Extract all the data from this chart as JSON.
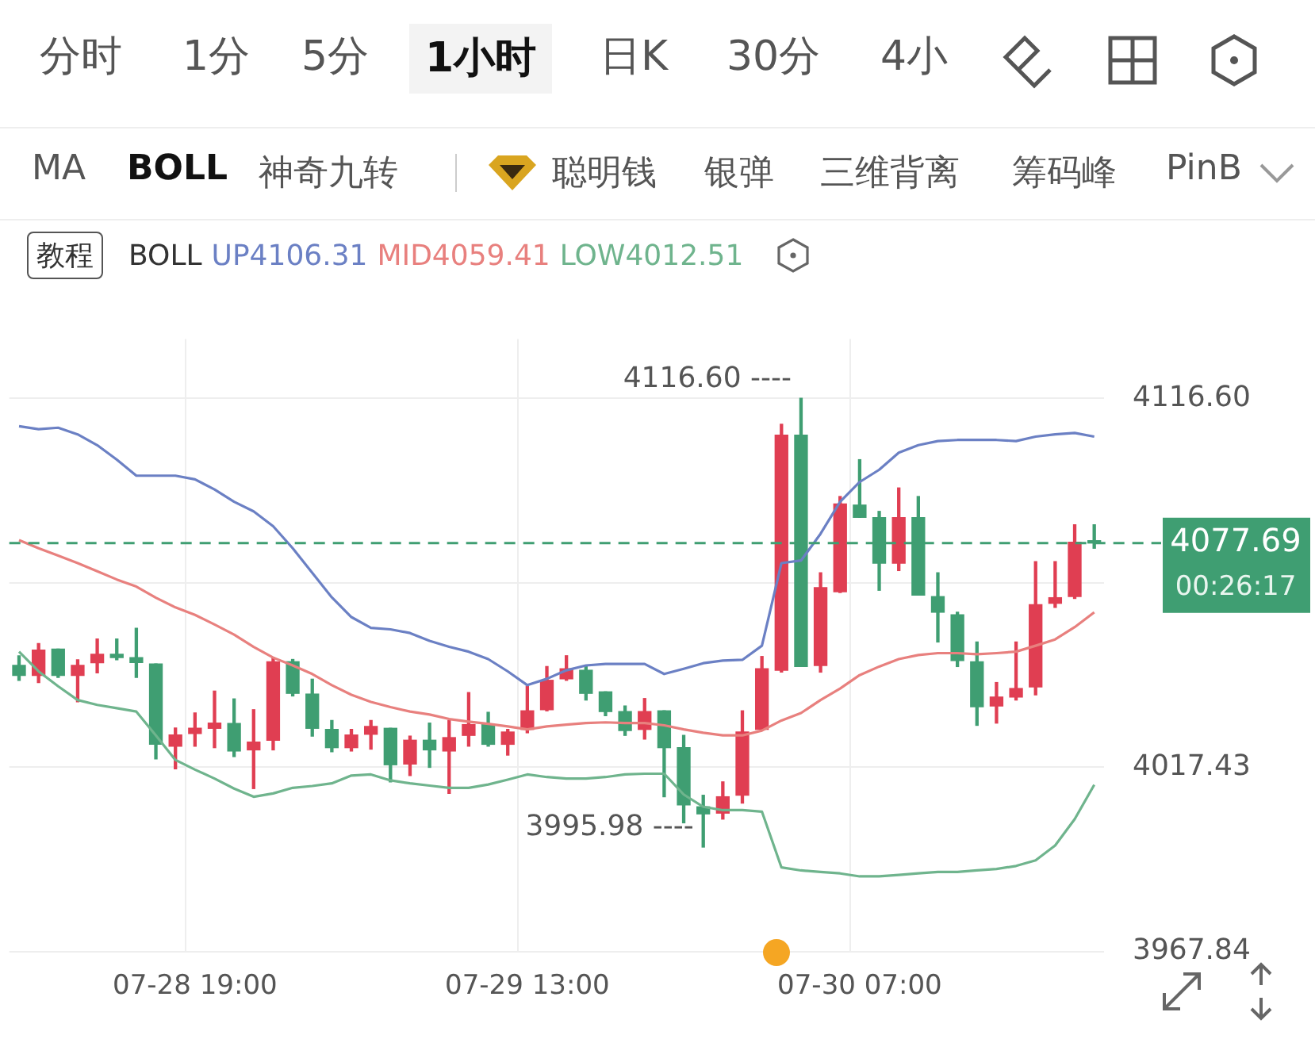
{
  "chart_data": {
    "type": "candlestick",
    "legend_title": "BOLL",
    "legend": "top",
    "grid": true,
    "marker": "none",
    "categories": [
      null,
      null,
      null,
      null,
      null,
      null,
      null,
      null,
      null,
      "07-28 19:00",
      null,
      null,
      null,
      null,
      null,
      null,
      null,
      null,
      null,
      null,
      null,
      null,
      null,
      null,
      null,
      null,
      "07-29 13:00",
      null,
      null,
      null,
      null,
      null,
      null,
      null,
      null,
      null,
      null,
      null,
      null,
      null,
      null,
      null,
      null,
      "07-30 07:00",
      null,
      null,
      null,
      null,
      null,
      null,
      null,
      null,
      null,
      null,
      null,
      null
    ],
    "ohlc": [
      [
        4044.8,
        4047.4,
        4040.8,
        4042.1
      ],
      [
        4042.1,
        4050.7,
        4040.2,
        4048.9
      ],
      [
        4049.2,
        4049.2,
        4041.6,
        4042.1
      ],
      [
        4042.1,
        4046.3,
        4035.0,
        4044.8
      ],
      [
        4045.5,
        4051.9,
        4042.8,
        4047.8
      ],
      [
        4047.8,
        4051.9,
        4046.3,
        4046.9
      ],
      [
        4046.9,
        4054.8,
        4041.6,
        4045.6
      ],
      [
        4045.2,
        4045.2,
        4019.7,
        4023.6
      ],
      [
        4023.1,
        4028.0,
        4017.0,
        4026.1
      ],
      [
        4026.5,
        4032.0,
        4023.1,
        4027.9
      ],
      [
        4027.9,
        4037.9,
        4022.7,
        4029.3
      ],
      [
        4029.2,
        4035.8,
        4020.3,
        4021.8
      ],
      [
        4022.1,
        4032.9,
        4011.7,
        4024.2
      ],
      [
        4024.7,
        4046.9,
        4022.1,
        4045.8
      ],
      [
        4045.8,
        4046.4,
        4036.6,
        4037.3
      ],
      [
        4037.1,
        4041.1,
        4025.8,
        4027.9
      ],
      [
        4027.6,
        4030.0,
        4021.6,
        4022.7
      ],
      [
        4022.7,
        4027.6,
        4021.8,
        4026.1
      ],
      [
        4026.3,
        4030.0,
        4022.3,
        4028.4
      ],
      [
        4027.9,
        4027.9,
        4013.5,
        4018.1
      ],
      [
        4018.3,
        4025.8,
        4015.2,
        4024.7
      ],
      [
        4024.7,
        4029.3,
        4017.4,
        4022.1
      ],
      [
        4021.8,
        4030.0,
        4010.4,
        4025.4
      ],
      [
        4026.0,
        4037.5,
        4023.1,
        4028.9
      ],
      [
        4028.9,
        4032.2,
        4023.1,
        4023.6
      ],
      [
        4023.6,
        4027.6,
        4020.7,
        4026.9
      ],
      [
        4027.6,
        4039.2,
        4026.7,
        4032.6
      ],
      [
        4032.9,
        4044.5,
        4032.6,
        4040.8
      ],
      [
        4041.2,
        4047.4,
        4040.8,
        4043.9
      ],
      [
        4043.5,
        4044.5,
        4035.5,
        4037.3
      ],
      [
        4037.7,
        4037.7,
        4031.3,
        4032.4
      ],
      [
        4032.4,
        4033.9,
        4026.0,
        4027.3
      ],
      [
        4027.6,
        4035.9,
        4025.0,
        4032.4
      ],
      [
        4032.6,
        4032.6,
        4009.5,
        4022.7
      ],
      [
        4022.7,
        4026.0,
        4002.5,
        4007.3
      ],
      [
        4006.8,
        4009.9,
        3995.98,
        4004.9
      ],
      [
        4005.1,
        4013.5,
        4003.5,
        4009.5
      ],
      [
        4009.9,
        4032.6,
        4007.8,
        4026.9
      ],
      [
        4027.6,
        4047.2,
        4027.6,
        4043.9
      ],
      [
        4043.5,
        4109.6,
        4043.0,
        4106.7
      ],
      [
        4106.7,
        4116.6,
        4044.5,
        4044.5
      ],
      [
        4044.8,
        4069.7,
        4043.0,
        4065.7
      ],
      [
        4064.6,
        4090.2,
        4064.4,
        4088.2
      ],
      [
        4087.9,
        4100.1,
        4084.6,
        4084.6
      ],
      [
        4084.5,
        4086.2,
        4065.0,
        4072.3
      ],
      [
        4072.3,
        4092.5,
        4070.3,
        4084.5
      ],
      [
        4084.5,
        4090.2,
        4063.7,
        4063.7
      ],
      [
        4063.3,
        4069.7,
        4051.1,
        4059.1
      ],
      [
        4058.4,
        4059.1,
        4044.5,
        4046.1
      ],
      [
        4045.8,
        4051.1,
        4028.7,
        4033.7
      ],
      [
        4033.9,
        4040.2,
        4029.3,
        4036.3
      ],
      [
        4036.3,
        4051.1,
        4035.5,
        4038.6
      ],
      [
        4039.0,
        4072.7,
        4036.9,
        4061.1
      ],
      [
        4061.5,
        4072.7,
        4060.4,
        4063.0
      ],
      [
        4063.3,
        4082.6,
        4062.8,
        4077.9
      ],
      [
        4078.1,
        4082.6,
        4076.3,
        4077.69
      ]
    ],
    "colors": [
      "#3f9e72",
      "#e03e52",
      "#3f9e72",
      "#e03e52",
      "#e03e52",
      "#3f9e72",
      "#3f9e72",
      "#3f9e72",
      "#e03e52",
      "#e03e52",
      "#e03e52",
      "#3f9e72",
      "#e03e52",
      "#e03e52",
      "#3f9e72",
      "#3f9e72",
      "#3f9e72",
      "#e03e52",
      "#e03e52",
      "#3f9e72",
      "#e03e52",
      "#3f9e72",
      "#e03e52",
      "#e03e52",
      "#3f9e72",
      "#e03e52",
      "#e03e52",
      "#e03e52",
      "#e03e52",
      "#3f9e72",
      "#3f9e72",
      "#3f9e72",
      "#e03e52",
      "#3f9e72",
      "#3f9e72",
      "#3f9e72",
      "#e03e52",
      "#e03e52",
      "#e03e52",
      "#e03e52",
      "#3f9e72",
      "#e03e52",
      "#e03e52",
      "#3f9e72",
      "#3f9e72",
      "#e03e52",
      "#3f9e72",
      "#3f9e72",
      "#3f9e72",
      "#3f9e72",
      "#e03e52",
      "#e03e52",
      "#e03e52",
      "#e03e52",
      "#e03e52",
      "#3f9e72"
    ],
    "series": [
      {
        "type": "line",
        "name": "UP4106.31",
        "color": "#6b80c4",
        "values": [
          4109.1,
          4108.3,
          4108.7,
          4106.9,
          4104.0,
          4100.1,
          4095.8,
          4095.8,
          4095.8,
          4094.8,
          4092.1,
          4088.8,
          4086.2,
          4082.2,
          4076.3,
          4069.7,
          4063.1,
          4057.8,
          4054.9,
          4054.5,
          4053.5,
          4051.4,
          4049.8,
          4048.5,
          4046.5,
          4043.2,
          4039.5,
          4041.2,
          4043.5,
          4044.8,
          4045.2,
          4045.2,
          4045.2,
          4042.5,
          4043.9,
          4045.4,
          4046.1,
          4046.3,
          4050.1,
          4072.3,
          4073.0,
          4080.2,
          4088.8,
          4094.1,
          4097.4,
          4102.0,
          4104.0,
          4105.1,
          4105.4,
          4105.4,
          4105.4,
          4105.1,
          4106.3,
          4106.9,
          4107.3,
          4106.3
        ]
      },
      {
        "type": "line",
        "name": "MID4059.41",
        "color": "#e8807e",
        "values": [
          4078.5,
          4076.3,
          4074.3,
          4072.3,
          4070.1,
          4067.9,
          4066.0,
          4063.0,
          4060.4,
          4058.4,
          4055.8,
          4053.1,
          4049.8,
          4046.9,
          4044.8,
          4042.5,
          4039.5,
          4036.9,
          4035.0,
          4033.6,
          4032.4,
          4031.6,
          4030.4,
          4029.7,
          4029.1,
          4028.4,
          4027.6,
          4028.4,
          4028.9,
          4029.3,
          4029.5,
          4029.3,
          4029.3,
          4028.7,
          4027.6,
          4026.7,
          4026.0,
          4026.0,
          4027.3,
          4030.0,
          4032.0,
          4035.5,
          4038.6,
          4042.2,
          4044.5,
          4046.5,
          4047.6,
          4048.1,
          4048.1,
          4047.8,
          4048.1,
          4048.5,
          4050.1,
          4051.8,
          4055.1,
          4059.1
        ]
      },
      {
        "type": "line",
        "name": "LOW4012.51",
        "color": "#6fb48d",
        "values": [
          4048.5,
          4043.2,
          4039.2,
          4035.5,
          4034.2,
          4033.3,
          4032.4,
          4026.0,
          4019.4,
          4016.8,
          4014.4,
          4011.7,
          4009.5,
          4010.4,
          4011.9,
          4012.4,
          4013.1,
          4015.2,
          4015.5,
          4013.9,
          4013.1,
          4012.5,
          4011.9,
          4011.9,
          4012.8,
          4014.1,
          4015.5,
          4014.8,
          4014.4,
          4014.4,
          4014.8,
          4015.5,
          4015.7,
          4015.7,
          4010.1,
          4006.8,
          4005.9,
          4005.9,
          4005.5,
          3990.5,
          3989.7,
          3989.3,
          3988.9,
          3988.1,
          3988.1,
          3988.5,
          3988.9,
          3989.3,
          3989.3,
          3989.7,
          3990.1,
          3990.9,
          3992.4,
          3996.4,
          4003.5,
          4012.7
        ]
      }
    ],
    "ylim": [
      3967.84,
      4132.5
    ],
    "yticks": [
      {
        "value": 3967.84,
        "label": "3967.84"
      },
      {
        "value": 4017.43,
        "label": "4017.43"
      },
      {
        "value": 4067.015,
        "label": null
      },
      {
        "value": 4116.6,
        "label": "4116.60"
      }
    ],
    "ref_lines": [
      {
        "axis": "y",
        "value": 4077.69,
        "label": "4077.69",
        "color": "#3f9e72",
        "line_style": "dashed"
      }
    ],
    "annotations": [
      "分时",
      "1分",
      "5分",
      "1小时",
      "日K",
      "30分",
      "4小",
      "MA",
      "BOLL",
      "神奇九转",
      "聪明钱",
      "银弹",
      "三维背离",
      "筹码峰",
      "PinB",
      "教程",
      "00:26:17",
      "4116.60 ----",
      "3995.98 ----"
    ]
  }
}
